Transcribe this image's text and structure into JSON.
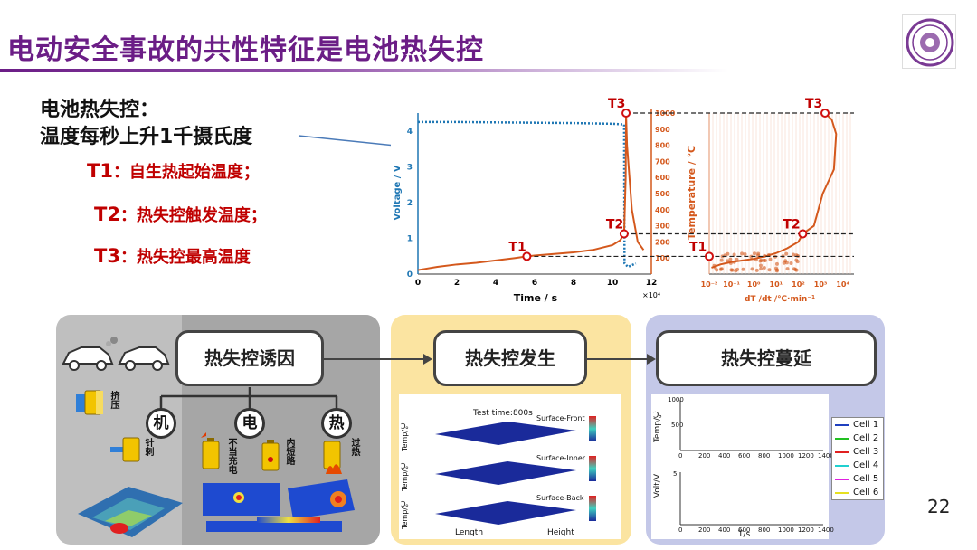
{
  "title": "电动安全事故的共性特征是电池热失控",
  "definition": {
    "heading": "电池热失控：",
    "text": "温度每秒上升1千摄氏度",
    "items": [
      {
        "key": "T1",
        "value": "：自生热起始温度；"
      },
      {
        "key": "T2",
        "value": "：热失控触发温度；"
      },
      {
        "key": "T3",
        "value": "：热失控最高温度"
      }
    ]
  },
  "chart_data": [
    {
      "type": "line",
      "xlabel": "Time / s",
      "x_exponent": "×10⁴",
      "ylabel": "Voltage / V",
      "y2label": "Temperature / ℃",
      "x_ticks": [
        "0",
        "2",
        "4",
        "6",
        "8",
        "10",
        "12"
      ],
      "y_ticks": [
        "0",
        "1",
        "2",
        "3",
        "4"
      ],
      "y2_ticks": [
        "100",
        "200",
        "300",
        "400",
        "500",
        "600",
        "700",
        "800",
        "900",
        "1000"
      ],
      "xlim": [
        0,
        12
      ],
      "ylim": [
        0,
        4.5
      ],
      "y2lim": [
        0,
        1000
      ],
      "markers": [
        {
          "label": "T1",
          "x": 5.6,
          "temp": 110
        },
        {
          "label": "T2",
          "x": 10.6,
          "temp": 250
        },
        {
          "label": "T3",
          "x": 10.7,
          "temp": 1000
        }
      ],
      "series": [
        {
          "name": "Voltage",
          "color": "#1f77b4",
          "points": [
            [
              0,
              4.25
            ],
            [
              2,
              4.25
            ],
            [
              4,
              4.24
            ],
            [
              6,
              4.23
            ],
            [
              8,
              4.22
            ],
            [
              10,
              4.2
            ],
            [
              10.6,
              4.18
            ],
            [
              10.62,
              0.3
            ],
            [
              10.8,
              0.2
            ],
            [
              11.2,
              0.3
            ]
          ]
        },
        {
          "name": "Temperature",
          "color": "#d4581c",
          "points": [
            [
              0,
              25
            ],
            [
              1,
              45
            ],
            [
              2,
              60
            ],
            [
              3,
              70
            ],
            [
              4,
              85
            ],
            [
              5,
              100
            ],
            [
              5.6,
              110
            ],
            [
              6,
              115
            ],
            [
              7,
              125
            ],
            [
              8,
              135
            ],
            [
              9,
              150
            ],
            [
              10,
              180
            ],
            [
              10.4,
              210
            ],
            [
              10.6,
              250
            ],
            [
              10.68,
              600
            ],
            [
              10.7,
              1000
            ],
            [
              10.75,
              800
            ],
            [
              11,
              400
            ],
            [
              11.3,
              200
            ],
            [
              11.6,
              150
            ]
          ]
        }
      ]
    },
    {
      "type": "scatter",
      "xlabel": "dT /dt /℃·min⁻¹",
      "x_ticks": [
        "10⁻²",
        "10⁻¹",
        "10⁰",
        "10¹",
        "10²",
        "10³",
        "10⁴"
      ],
      "xscale": "log",
      "xlim_log10": [
        -2,
        4.5
      ],
      "ylim": [
        0,
        1000
      ],
      "markers": [
        {
          "label": "T1",
          "x_log10": -2,
          "temp": 110
        },
        {
          "label": "T2",
          "x_log10": 2.2,
          "temp": 250
        },
        {
          "label": "T3",
          "x_log10": 3.2,
          "temp": 1000
        }
      ],
      "series": [
        {
          "name": "dT/dt",
          "color": "#d4581c",
          "points_log10": [
            [
              -1.9,
              40
            ],
            [
              -1.5,
              60
            ],
            [
              -1,
              75
            ],
            [
              -0.5,
              85
            ],
            [
              0,
              95
            ],
            [
              0.5,
              110
            ],
            [
              1,
              130
            ],
            [
              1.5,
              160
            ],
            [
              2,
              200
            ],
            [
              2.2,
              250
            ],
            [
              2.7,
              300
            ],
            [
              3.1,
              500
            ],
            [
              3.6,
              650
            ],
            [
              3.7,
              870
            ],
            [
              3.5,
              960
            ],
            [
              3.2,
              1000
            ]
          ]
        }
      ]
    }
  ],
  "stages": [
    {
      "label": "热失控诱因"
    },
    {
      "label": "热失控发生"
    },
    {
      "label": "热失控蔓延"
    }
  ],
  "causes": [
    {
      "label": "机"
    },
    {
      "label": "电"
    },
    {
      "label": "热"
    }
  ],
  "cause_tags": {
    "squeeze": "挤压",
    "pierce": "针刺",
    "improper_charge": "不当充电",
    "short_circuit": "内短路",
    "overheat": "过热"
  },
  "occurrence": {
    "test_time": "Test time:800s",
    "surfaces": [
      "Surface-Front",
      "Surface-Inner",
      "Surface-Back"
    ],
    "axis_temp": "Temp/℃",
    "axis_length": "Length",
    "axis_height": "Height"
  },
  "propagation": {
    "temp_label": "Temp/℃",
    "volt_label": "Volt/V",
    "x_label": "T/s",
    "x_ticks": [
      "0",
      "200",
      "400",
      "600",
      "800",
      "1000",
      "1200",
      "1400"
    ],
    "temp_tick_top": "1000",
    "temp_tick_mid": "500",
    "volt_tick_top": "5",
    "legend": [
      {
        "name": "Cell 1",
        "color": "#1f3fbf"
      },
      {
        "name": "Cell 2",
        "color": "#22c022"
      },
      {
        "name": "Cell 3",
        "color": "#e02020"
      },
      {
        "name": "Cell 4",
        "color": "#20d0d0"
      },
      {
        "name": "Cell 5",
        "color": "#e020e0"
      },
      {
        "name": "Cell 6",
        "color": "#e6e020"
      }
    ]
  },
  "page_number": "22"
}
